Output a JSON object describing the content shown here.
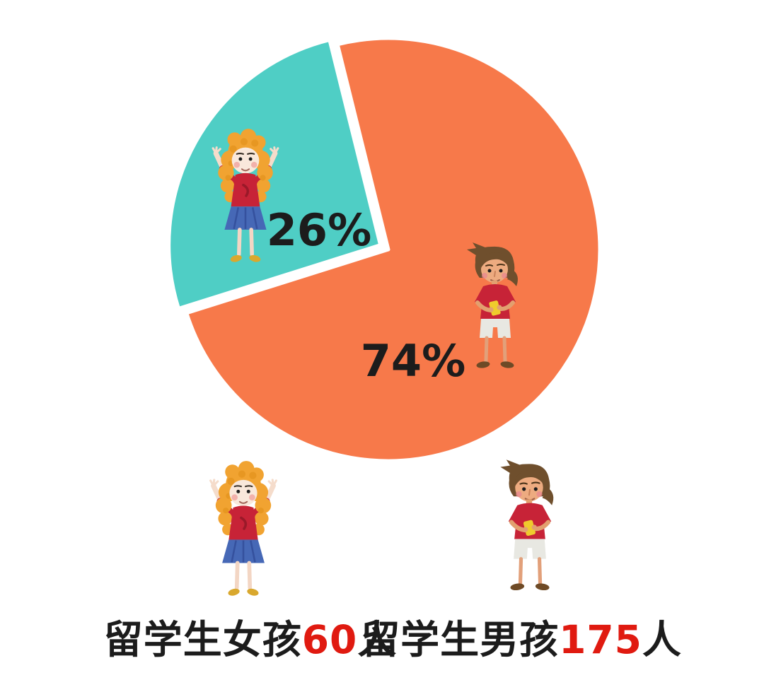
{
  "page": {
    "background": "#ffffff"
  },
  "chart_data": {
    "type": "pie",
    "title": "",
    "legend_position": "bottom",
    "slices": [
      {
        "label": "留学生女孩",
        "count": 60,
        "percent": 26,
        "percent_label": "26%",
        "color": "#4FCEC5",
        "exploded": true
      },
      {
        "label": "留学生男孩",
        "count": 175,
        "percent": 74,
        "percent_label": "74%",
        "color": "#F7794A",
        "exploded": false
      }
    ],
    "legend": [
      {
        "prefix": "留学生女孩",
        "value": "60",
        "suffix": "人"
      },
      {
        "prefix": "留学生男孩",
        "value": "175",
        "suffix": "人"
      }
    ]
  },
  "colors": {
    "female_slice": "#4FCEC5",
    "male_slice": "#F7794A",
    "number_highlight": "#E01A10",
    "text": "#1C1C1C"
  }
}
